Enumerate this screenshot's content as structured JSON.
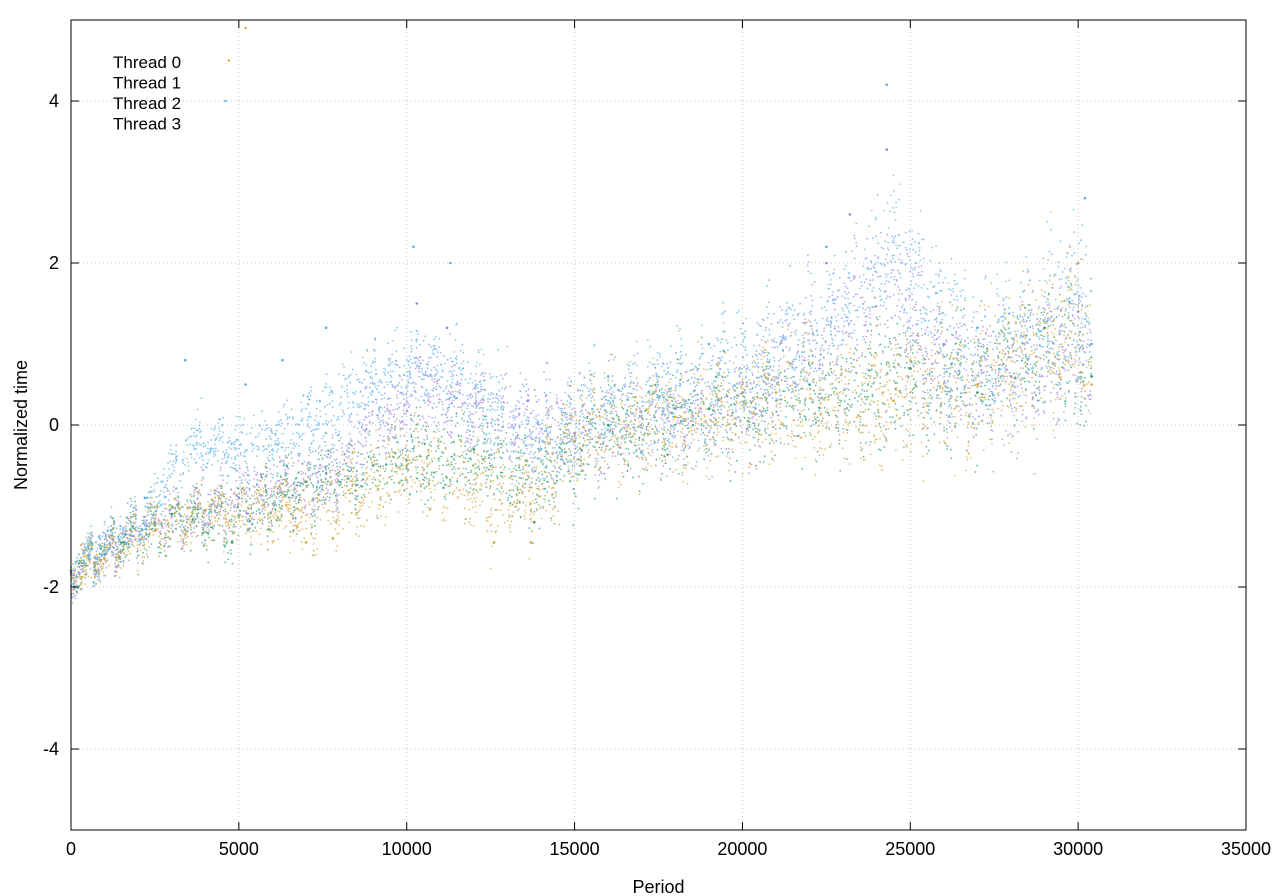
{
  "chart_data": {
    "type": "scatter",
    "title": "",
    "xlabel": "Period",
    "ylabel": "Normalized time",
    "xlim": [
      0,
      35000
    ],
    "ylim": [
      -5,
      5
    ],
    "xticks": [
      0,
      5000,
      10000,
      15000,
      20000,
      25000,
      30000,
      35000
    ],
    "yticks": [
      -4,
      -2,
      0,
      2,
      4
    ],
    "grid": true,
    "legend_position": "top-left",
    "x_data_extent": [
      0,
      30400
    ],
    "trend": {
      "description_points_x": [
        0,
        2000,
        5000,
        8000,
        10000,
        14000,
        15000,
        20000,
        25000,
        30000,
        30400
      ],
      "median_y": [
        -1.8,
        -1.35,
        -0.95,
        -0.65,
        -0.45,
        -0.25,
        -0.1,
        0.15,
        0.45,
        0.7,
        0.7
      ]
    },
    "series": [
      {
        "name": "Thread 0",
        "color": "#9f86e6",
        "points": [
          [
            0,
            -1.82
          ],
          [
            1000,
            -1.6
          ],
          [
            2500,
            -1.2
          ],
          [
            5000,
            -0.9
          ],
          [
            7600,
            -0.6
          ],
          [
            10300,
            1.5
          ],
          [
            11200,
            1.2
          ],
          [
            13600,
            0.3
          ],
          [
            15000,
            -0.1
          ],
          [
            18000,
            0.2
          ],
          [
            20000,
            0.4
          ],
          [
            22500,
            2.0
          ],
          [
            23200,
            2.6
          ],
          [
            24300,
            3.4
          ],
          [
            26000,
            1.0
          ],
          [
            28000,
            0.6
          ],
          [
            30000,
            1.4
          ],
          [
            30400,
            0.6
          ]
        ]
      },
      {
        "name": "Thread 1",
        "color": "#2a9e78",
        "points": [
          [
            0,
            -1.8
          ],
          [
            1500,
            -1.45
          ],
          [
            3000,
            -1.1
          ],
          [
            4800,
            -1.45
          ],
          [
            7000,
            -0.7
          ],
          [
            9000,
            -0.5
          ],
          [
            12000,
            -0.3
          ],
          [
            13800,
            -1.2
          ],
          [
            16000,
            0.0
          ],
          [
            19000,
            0.2
          ],
          [
            22000,
            0.5
          ],
          [
            25000,
            0.7
          ],
          [
            27000,
            0.4
          ],
          [
            29000,
            1.2
          ],
          [
            30400,
            0.6
          ]
        ]
      },
      {
        "name": "Thread 2",
        "color": "#5ab0e8",
        "points": [
          [
            0,
            -1.8
          ],
          [
            1200,
            -1.3
          ],
          [
            2200,
            -0.9
          ],
          [
            3400,
            0.8
          ],
          [
            5200,
            0.5
          ],
          [
            6300,
            0.8
          ],
          [
            7600,
            1.2
          ],
          [
            10200,
            2.2
          ],
          [
            11300,
            2.0
          ],
          [
            14000,
            -0.3
          ],
          [
            16000,
            0.6
          ],
          [
            19000,
            1.0
          ],
          [
            22500,
            2.2
          ],
          [
            24300,
            4.2
          ],
          [
            27000,
            1.2
          ],
          [
            30200,
            2.8
          ],
          [
            30400,
            1.0
          ]
        ]
      },
      {
        "name": "Thread 3",
        "color": "#d4a73a",
        "points": [
          [
            0,
            -1.84
          ],
          [
            1000,
            -1.65
          ],
          [
            2500,
            -1.3
          ],
          [
            4000,
            -1.05
          ],
          [
            7000,
            -1.45
          ],
          [
            7800,
            -1.4
          ],
          [
            10000,
            -0.5
          ],
          [
            12600,
            -1.45
          ],
          [
            13700,
            -1.45
          ],
          [
            15000,
            -0.2
          ],
          [
            18000,
            0.1
          ],
          [
            21000,
            0.4
          ],
          [
            24500,
            0.3
          ],
          [
            27000,
            0.5
          ],
          [
            30000,
            2.0
          ],
          [
            30400,
            0.5
          ]
        ]
      }
    ],
    "outliers": [
      {
        "series": "Thread 3",
        "x": 4700,
        "y": 4.5
      },
      {
        "series": "Thread 3",
        "x": 5200,
        "y": 4.9
      },
      {
        "series": "Thread 2",
        "x": 4600,
        "y": 4.0
      }
    ]
  }
}
